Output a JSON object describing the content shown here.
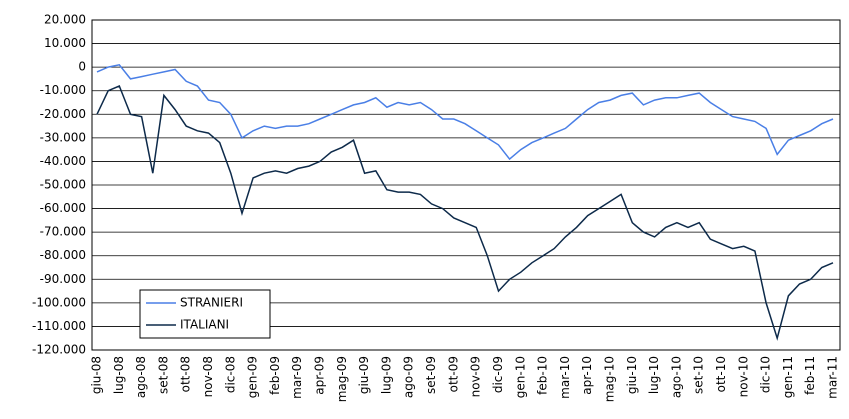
{
  "chart_data": {
    "type": "line",
    "categories": [
      "giu-08",
      null,
      "lug-08",
      null,
      "ago-08",
      null,
      "set-08",
      null,
      "ott-08",
      null,
      "nov-08",
      null,
      "dic-08",
      null,
      "gen-09",
      null,
      "feb-09",
      null,
      "mar-09",
      null,
      "apr-09",
      null,
      "mag-09",
      null,
      "giu-09",
      null,
      "lug-09",
      null,
      "ago-09",
      null,
      "set-09",
      null,
      "ott-09",
      null,
      "nov-09",
      null,
      "dic-09",
      null,
      "gen-10",
      null,
      "feb-10",
      null,
      "mar-10",
      null,
      "apr-10",
      null,
      "mag-10",
      null,
      "giu-10",
      null,
      "lug-10",
      null,
      "ago-10",
      null,
      "set-10",
      null,
      "ott-10",
      null,
      "nov-10",
      null,
      "dic-10",
      null,
      "gen-11",
      null,
      "feb-11",
      null,
      "mar-11"
    ],
    "series": [
      {
        "name": "STRANIERI",
        "color": "#4a7fe6",
        "values": [
          -2000,
          0,
          1000,
          -5000,
          -4000,
          -3000,
          -2000,
          -1000,
          -6000,
          -8000,
          -14000,
          -15000,
          -20000,
          -30000,
          -27000,
          -25000,
          -26000,
          -25000,
          -25000,
          -24000,
          -22000,
          -20000,
          -18000,
          -16000,
          -15000,
          -13000,
          -17000,
          -15000,
          -16000,
          -15000,
          -18000,
          -22000,
          -22000,
          -24000,
          -27000,
          -30000,
          -33000,
          -39000,
          -35000,
          -32000,
          -30000,
          -28000,
          -26000,
          -22000,
          -18000,
          -15000,
          -14000,
          -12000,
          -11000,
          -16000,
          -14000,
          -13000,
          -13000,
          -12000,
          -11000,
          -15000,
          -18000,
          -21000,
          -22000,
          -23000,
          -26000,
          -37000,
          -31000,
          -29000,
          -27000,
          -24000,
          -22000
        ]
      },
      {
        "name": "ITALIANI",
        "color": "#0d2a4a",
        "values": [
          -20000,
          -10000,
          -8000,
          -20000,
          -21000,
          -45000,
          -12000,
          -18000,
          -25000,
          -27000,
          -28000,
          -32000,
          -45000,
          -62000,
          -47000,
          -45000,
          -44000,
          -45000,
          -43000,
          -42000,
          -40000,
          -36000,
          -34000,
          -31000,
          -45000,
          -44000,
          -52000,
          -53000,
          -53000,
          -54000,
          -58000,
          -60000,
          -64000,
          -66000,
          -68000,
          -80000,
          -95000,
          -90000,
          -87000,
          -83000,
          -80000,
          -77000,
          -72000,
          -68000,
          -63000,
          -60000,
          -57000,
          -54000,
          -66000,
          -70000,
          -72000,
          -68000,
          -66000,
          -68000,
          -66000,
          -73000,
          -75000,
          -77000,
          -76000,
          -78000,
          -100000,
          -115000,
          -97000,
          -92000,
          -90000,
          -85000,
          -83000
        ]
      }
    ],
    "ylim": [
      -120000,
      20000
    ],
    "yticks": [
      {
        "value": -120000,
        "label": "-120.000"
      },
      {
        "value": -110000,
        "label": "-110.000"
      },
      {
        "value": -100000,
        "label": "-100.000"
      },
      {
        "value": -90000,
        "label": "-90.000"
      },
      {
        "value": -80000,
        "label": "-80.000"
      },
      {
        "value": -70000,
        "label": "-70.000"
      },
      {
        "value": -60000,
        "label": "-60.000"
      },
      {
        "value": -50000,
        "label": "-50.000"
      },
      {
        "value": -40000,
        "label": "-40.000"
      },
      {
        "value": -30000,
        "label": "-30.000"
      },
      {
        "value": -20000,
        "label": "-20.000"
      },
      {
        "value": -10000,
        "label": "-10.000"
      },
      0,
      {
        "value": 10000,
        "label": "10.000"
      },
      {
        "value": 20000,
        "label": "20.000"
      }
    ],
    "grid": true,
    "legend": "lower left"
  }
}
